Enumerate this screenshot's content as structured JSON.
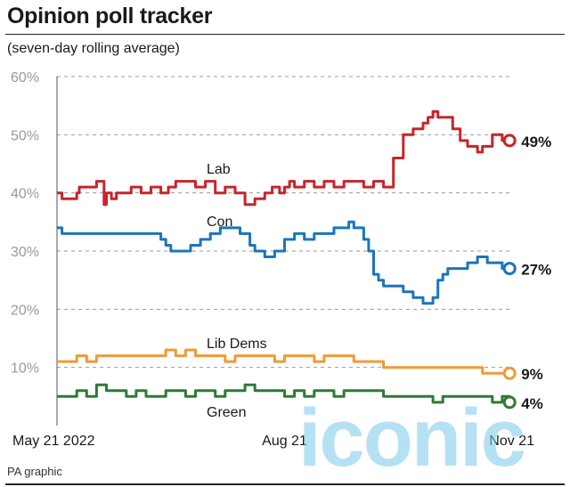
{
  "header": {
    "title": "Opinion poll tracker",
    "subtitle": "(seven-day rolling average)"
  },
  "footer": {
    "credit": "PA graphic"
  },
  "watermark": {
    "text": "iconic"
  },
  "chart_data": {
    "type": "line",
    "title": "Opinion poll tracker",
    "subtitle": "(seven-day rolling average)",
    "xlabel": "",
    "ylabel": "",
    "ylim": [
      0,
      60
    ],
    "y_ticks": [
      "60%",
      "50%",
      "40%",
      "30%",
      "20%",
      "10%"
    ],
    "x_ticks": [
      {
        "label": "May 21 2022",
        "day": 0
      },
      {
        "label": "Aug 21",
        "day": 92
      },
      {
        "label": "Nov 21",
        "day": 184
      }
    ],
    "grid": true,
    "series": [
      {
        "name": "Lab",
        "color": "#c8242b",
        "end_label": "49%",
        "x": [
          0,
          2,
          8,
          9,
          12,
          16,
          18,
          19,
          20,
          22,
          24,
          26,
          30,
          34,
          36,
          38,
          42,
          45,
          48,
          52,
          56,
          60,
          64,
          68,
          72,
          76,
          80,
          84,
          87,
          90,
          92,
          94,
          96,
          100,
          104,
          108,
          112,
          116,
          120,
          124,
          128,
          132,
          136,
          140,
          144,
          148,
          150,
          152,
          154,
          156,
          160,
          163,
          166,
          170,
          172,
          176,
          180,
          183
        ],
        "y": [
          40,
          39,
          40,
          41,
          41,
          42,
          42,
          38,
          40,
          39,
          40,
          40,
          41,
          40,
          40,
          41,
          40,
          41,
          42,
          42,
          41,
          42,
          40,
          41,
          40,
          38,
          39,
          40,
          41,
          40,
          41,
          42,
          41,
          42,
          41,
          42,
          41,
          42,
          42,
          41,
          42,
          41,
          46,
          50,
          51,
          52,
          53,
          54,
          53,
          53,
          51,
          49,
          48,
          47,
          48,
          50,
          49,
          49
        ]
      },
      {
        "name": "Con",
        "color": "#1b75bb",
        "end_label": "27%",
        "x": [
          0,
          2,
          6,
          10,
          14,
          18,
          22,
          26,
          30,
          34,
          38,
          42,
          44,
          46,
          50,
          54,
          58,
          62,
          66,
          70,
          74,
          78,
          80,
          84,
          88,
          92,
          96,
          100,
          104,
          108,
          112,
          116,
          118,
          120,
          124,
          126,
          128,
          130,
          132,
          136,
          140,
          144,
          148,
          150,
          152,
          154,
          156,
          158,
          162,
          166,
          170,
          174,
          178,
          180,
          183
        ],
        "y": [
          34,
          33,
          33,
          33,
          33,
          33,
          33,
          33,
          33,
          33,
          33,
          32,
          31,
          30,
          30,
          31,
          32,
          33,
          34,
          34,
          33,
          31,
          30,
          29,
          30,
          32,
          33,
          32,
          33,
          33,
          34,
          34,
          35,
          34,
          32,
          30,
          26,
          25,
          24,
          24,
          23,
          22,
          21,
          21,
          22,
          25,
          26,
          27,
          27,
          28,
          29,
          28,
          28,
          27,
          27
        ]
      },
      {
        "name": "Lib Dems",
        "color": "#f09a37",
        "end_label": "9%",
        "x": [
          0,
          4,
          8,
          12,
          16,
          20,
          24,
          28,
          32,
          36,
          40,
          44,
          48,
          52,
          56,
          60,
          64,
          68,
          72,
          76,
          80,
          84,
          88,
          92,
          96,
          100,
          104,
          108,
          112,
          116,
          120,
          124,
          128,
          132,
          136,
          140,
          144,
          148,
          152,
          156,
          160,
          164,
          168,
          172,
          176,
          180,
          183
        ],
        "y": [
          11,
          11,
          12,
          11,
          12,
          12,
          12,
          12,
          12,
          12,
          12,
          13,
          12,
          13,
          12,
          12,
          12,
          11,
          12,
          12,
          12,
          12,
          11,
          12,
          12,
          12,
          11,
          12,
          12,
          12,
          11,
          11,
          11,
          10,
          10,
          10,
          10,
          10,
          10,
          10,
          10,
          10,
          10,
          9,
          9,
          9,
          9
        ]
      },
      {
        "name": "Green",
        "color": "#2f7a36",
        "end_label": "4%",
        "x": [
          0,
          4,
          8,
          12,
          16,
          20,
          24,
          28,
          32,
          36,
          40,
          44,
          48,
          52,
          56,
          60,
          64,
          68,
          72,
          76,
          80,
          84,
          88,
          92,
          96,
          100,
          104,
          108,
          112,
          116,
          120,
          124,
          128,
          132,
          136,
          140,
          144,
          148,
          152,
          156,
          160,
          164,
          168,
          172,
          176,
          180,
          183
        ],
        "y": [
          5,
          5,
          6,
          5,
          7,
          6,
          6,
          5,
          6,
          5,
          5,
          6,
          6,
          5,
          6,
          6,
          5,
          6,
          6,
          7,
          6,
          6,
          6,
          5,
          6,
          5,
          6,
          6,
          5,
          6,
          6,
          6,
          6,
          5,
          5,
          5,
          5,
          5,
          4,
          5,
          5,
          5,
          5,
          5,
          4,
          5,
          4
        ]
      }
    ],
    "inline_labels": [
      {
        "text": "Lab",
        "series": "Lab"
      },
      {
        "text": "Con",
        "series": "Con"
      },
      {
        "text": "Lib Dems",
        "series": "Lib Dems"
      },
      {
        "text": "Green",
        "series": "Green"
      }
    ]
  }
}
